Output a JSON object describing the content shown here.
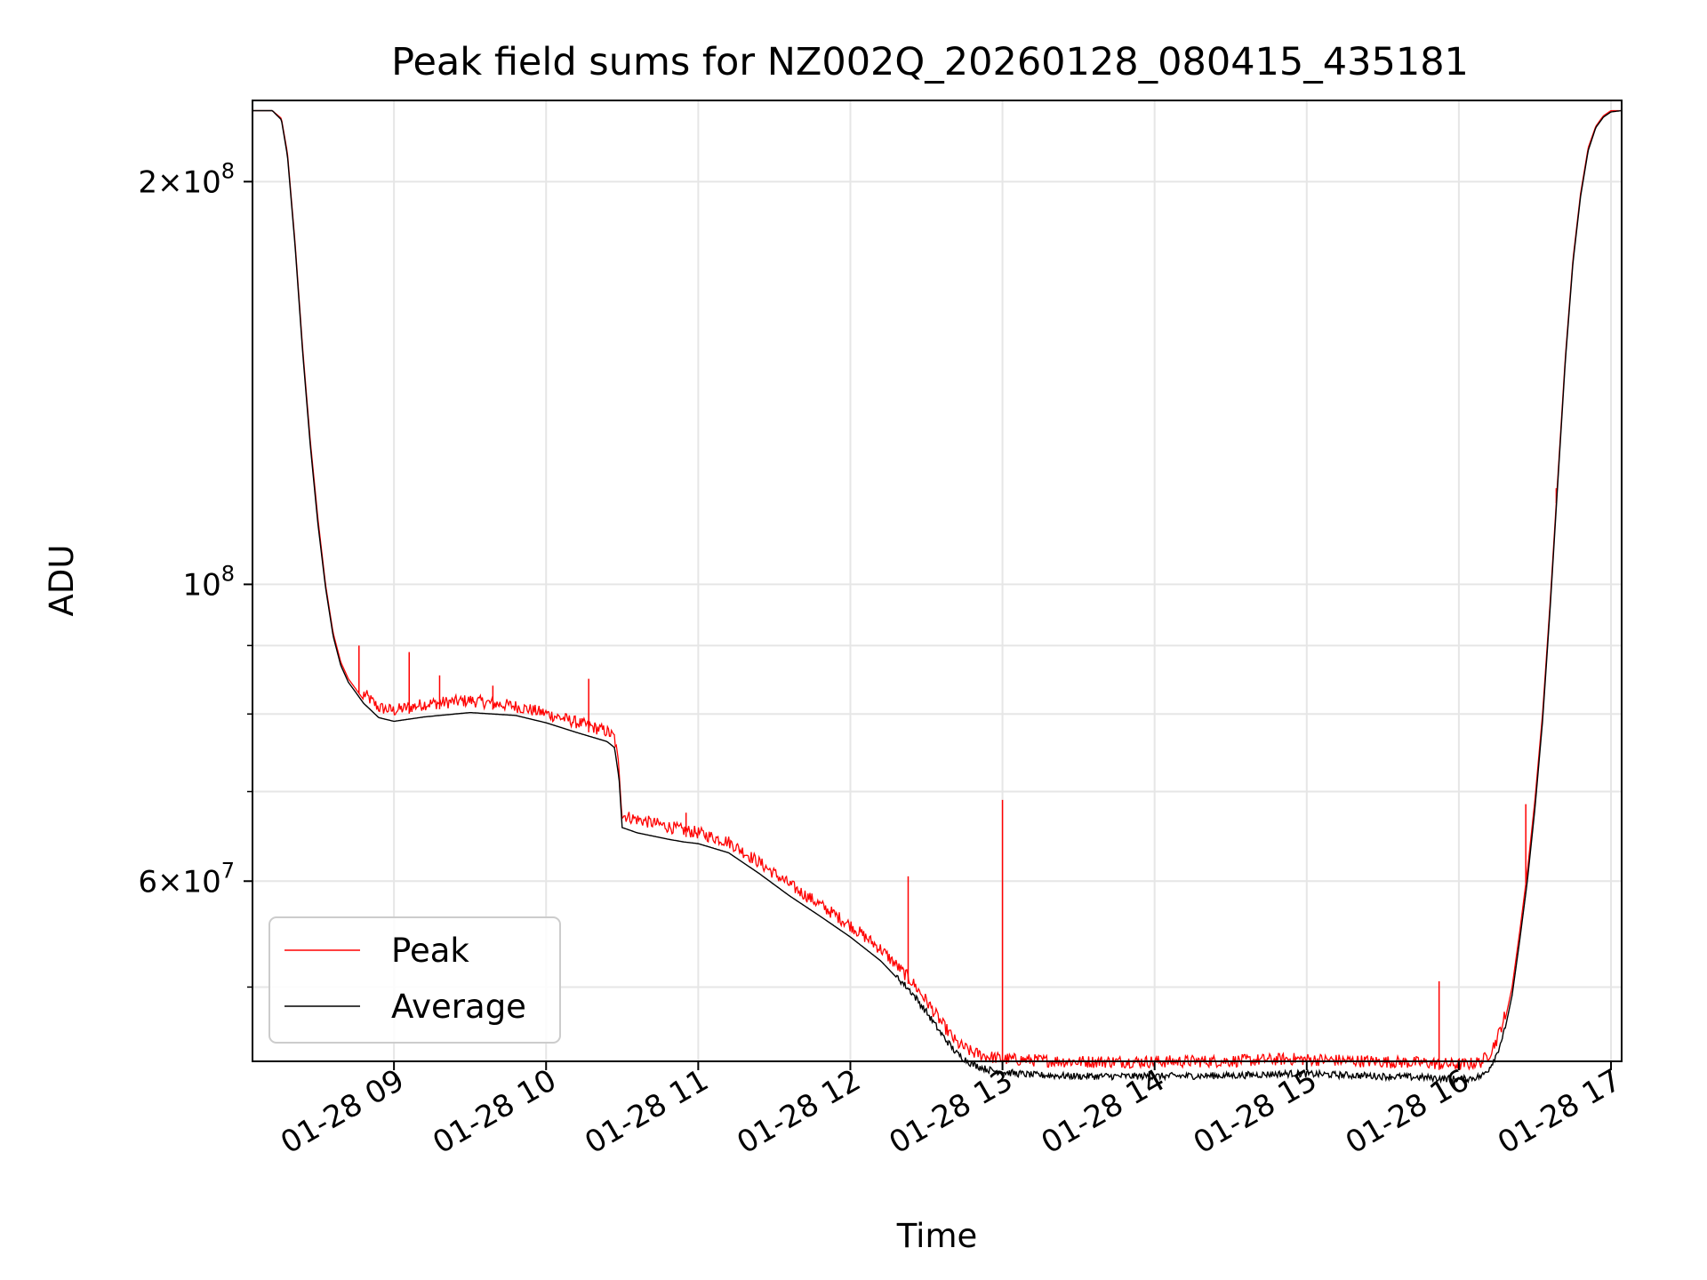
{
  "chart_data": {
    "type": "line",
    "title": "Peak field sums for NZ002Q_20260128_080415_435181",
    "xlabel": "Time",
    "ylabel": "ADU",
    "yscale": "log",
    "x_unit": "hours since 01-28 00:00",
    "xlim": [
      8.07,
      17.07
    ],
    "ylim": [
      44000000,
      230000000
    ],
    "grid": true,
    "legend_location": "lower-left",
    "x_ticks": [
      {
        "value": 9,
        "label": "01-28 09"
      },
      {
        "value": 10,
        "label": "01-28 10"
      },
      {
        "value": 11,
        "label": "01-28 11"
      },
      {
        "value": 12,
        "label": "01-28 12"
      },
      {
        "value": 13,
        "label": "01-28 13"
      },
      {
        "value": 14,
        "label": "01-28 14"
      },
      {
        "value": 15,
        "label": "01-28 15"
      },
      {
        "value": 16,
        "label": "01-28 16"
      },
      {
        "value": 17,
        "label": "01-28 17"
      }
    ],
    "y_major_ticks": [
      {
        "value": 200000000,
        "mantissa": "2",
        "exponent": "8"
      },
      {
        "value": 100000000,
        "mantissa": "",
        "exponent": "8"
      },
      {
        "value": 60000000,
        "mantissa": "6",
        "exponent": "7"
      }
    ],
    "y_minor_ticks": [
      50000000,
      70000000,
      80000000,
      90000000
    ],
    "series": [
      {
        "name": "Peak",
        "color": "#ff0000",
        "x": [
          8.07,
          8.2,
          8.26,
          8.3,
          8.35,
          8.4,
          8.45,
          8.5,
          8.55,
          8.6,
          8.65,
          8.7,
          8.75,
          8.8,
          8.9,
          9.0,
          9.2,
          9.5,
          9.8,
          10.0,
          10.2,
          10.4,
          10.45,
          10.48,
          10.5,
          10.6,
          10.8,
          10.9,
          11.0,
          11.2,
          11.4,
          11.6,
          11.8,
          12.0,
          12.2,
          12.4,
          12.5,
          12.6,
          12.7,
          12.8,
          12.9,
          13.0,
          13.2,
          13.5,
          14.0,
          14.5,
          14.9,
          15.2,
          15.5,
          15.8,
          15.95,
          16.05,
          16.15,
          16.2,
          16.25,
          16.3,
          16.35,
          16.4,
          16.45,
          16.5,
          16.55,
          16.6,
          16.65,
          16.7,
          16.75,
          16.8,
          16.85,
          16.9,
          16.95,
          17.0,
          17.07
        ],
        "y": [
          226000000,
          226000000,
          223000000,
          210000000,
          180000000,
          150000000,
          128000000,
          112000000,
          100000000,
          92000000,
          87500000,
          85000000,
          83500000,
          82000000,
          80000000,
          79600000,
          80500000,
          81000000,
          80200000,
          79200000,
          78000000,
          76800000,
          76000000,
          72000000,
          66500000,
          66000000,
          65200000,
          64800000,
          64500000,
          63500000,
          61300000,
          59000000,
          57000000,
          55000000,
          52800000,
          50000000,
          48300000,
          46500000,
          44900000,
          44200000,
          43900000,
          43700000,
          43600000,
          43500000,
          43500000,
          43550000,
          43700000,
          43600000,
          43500000,
          43400000,
          43300000,
          43300000,
          43500000,
          44100000,
          45200000,
          47000000,
          50000000,
          55000000,
          61000000,
          69000000,
          80000000,
          97000000,
          120000000,
          148000000,
          175000000,
          196000000,
          212000000,
          220000000,
          224000000,
          226000000,
          226000000
        ],
        "spikes": [
          {
            "x": 8.77,
            "y": 90000000
          },
          {
            "x": 9.1,
            "y": 89000000
          },
          {
            "x": 9.3,
            "y": 85500000
          },
          {
            "x": 9.65,
            "y": 84000000
          },
          {
            "x": 10.28,
            "y": 85000000
          },
          {
            "x": 10.92,
            "y": 67500000
          },
          {
            "x": 12.38,
            "y": 60500000
          },
          {
            "x": 13.0,
            "y": 69000000
          },
          {
            "x": 15.87,
            "y": 50500000
          },
          {
            "x": 16.44,
            "y": 68500000
          },
          {
            "x": 16.64,
            "y": 118000000
          }
        ]
      },
      {
        "name": "Average",
        "color": "#000000",
        "x": [
          8.07,
          8.2,
          8.26,
          8.3,
          8.35,
          8.4,
          8.45,
          8.5,
          8.55,
          8.6,
          8.65,
          8.7,
          8.75,
          8.8,
          8.9,
          9.0,
          9.2,
          9.5,
          9.8,
          10.0,
          10.2,
          10.4,
          10.45,
          10.48,
          10.5,
          10.6,
          10.8,
          10.9,
          11.0,
          11.2,
          11.4,
          11.6,
          11.8,
          12.0,
          12.2,
          12.4,
          12.5,
          12.6,
          12.7,
          12.8,
          12.9,
          13.0,
          13.2,
          13.5,
          14.0,
          14.5,
          14.9,
          15.2,
          15.5,
          15.8,
          15.95,
          16.05,
          16.15,
          16.2,
          16.25,
          16.3,
          16.35,
          16.4,
          16.45,
          16.5,
          16.55,
          16.6,
          16.65,
          16.7,
          16.75,
          16.8,
          16.85,
          16.9,
          16.95,
          17.0,
          17.07
        ],
        "y": [
          226000000,
          226000000,
          222500000,
          209000000,
          179000000,
          149000000,
          127000000,
          111000000,
          99500000,
          91500000,
          87000000,
          84500000,
          83000000,
          81500000,
          79500000,
          79000000,
          79600000,
          80200000,
          79800000,
          78800000,
          77500000,
          76300000,
          75500000,
          71500000,
          65800000,
          65200000,
          64500000,
          64200000,
          64000000,
          63000000,
          60800000,
          58500000,
          56500000,
          54500000,
          52300000,
          49500000,
          47800000,
          46000000,
          44500000,
          43700000,
          43300000,
          43100000,
          42900000,
          42800000,
          42800000,
          42850000,
          43000000,
          42900000,
          42800000,
          42700000,
          42600000,
          42600000,
          42800000,
          43400000,
          44500000,
          46300000,
          49300000,
          54200000,
          60000000,
          68000000,
          79000000,
          96000000,
          119000000,
          147000000,
          174000000,
          195000000,
          211000000,
          219500000,
          223500000,
          225500000,
          226000000
        ]
      }
    ]
  }
}
